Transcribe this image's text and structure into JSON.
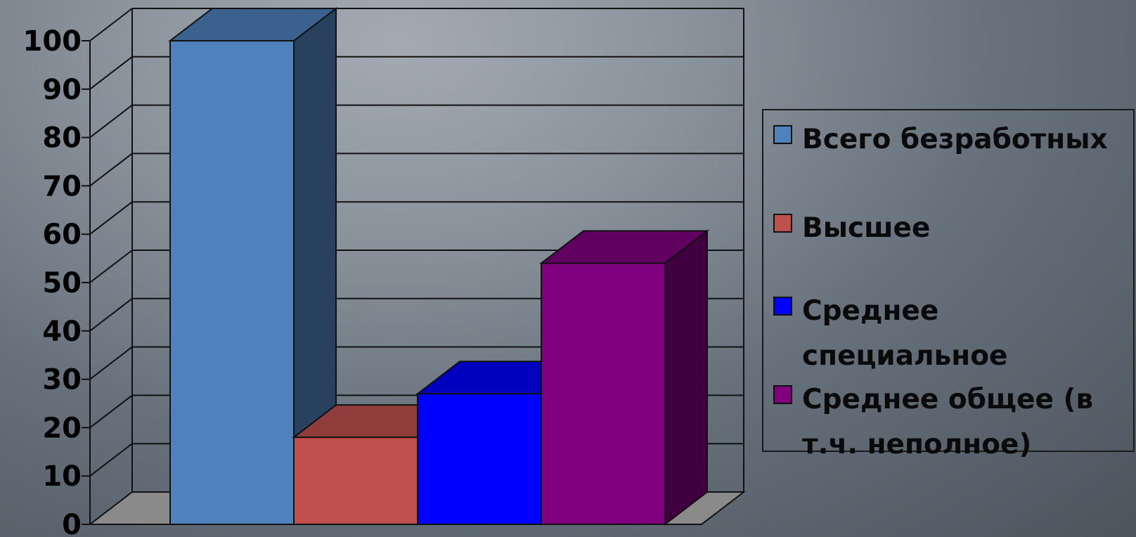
{
  "chart_data": {
    "type": "bar",
    "title": "",
    "xlabel": "",
    "ylabel": "",
    "ylim": [
      0,
      100
    ],
    "y_ticks": [
      "0",
      "10",
      "20",
      "30",
      "40",
      "50",
      "60",
      "70",
      "80",
      "90",
      "100"
    ],
    "grid": true,
    "three_d": true,
    "legend_position": "right",
    "series": [
      {
        "name": "Всего безработных",
        "values": [
          100
        ],
        "color": "#4f81bd"
      },
      {
        "name": "Высшее",
        "values": [
          18
        ],
        "color": "#c0504d"
      },
      {
        "name": "Среднее специальное",
        "values": [
          27
        ],
        "color": "#0000ff"
      },
      {
        "name": "Среднее общее (в т.ч. неполное)",
        "values": [
          54
        ],
        "color": "#800080"
      }
    ]
  }
}
